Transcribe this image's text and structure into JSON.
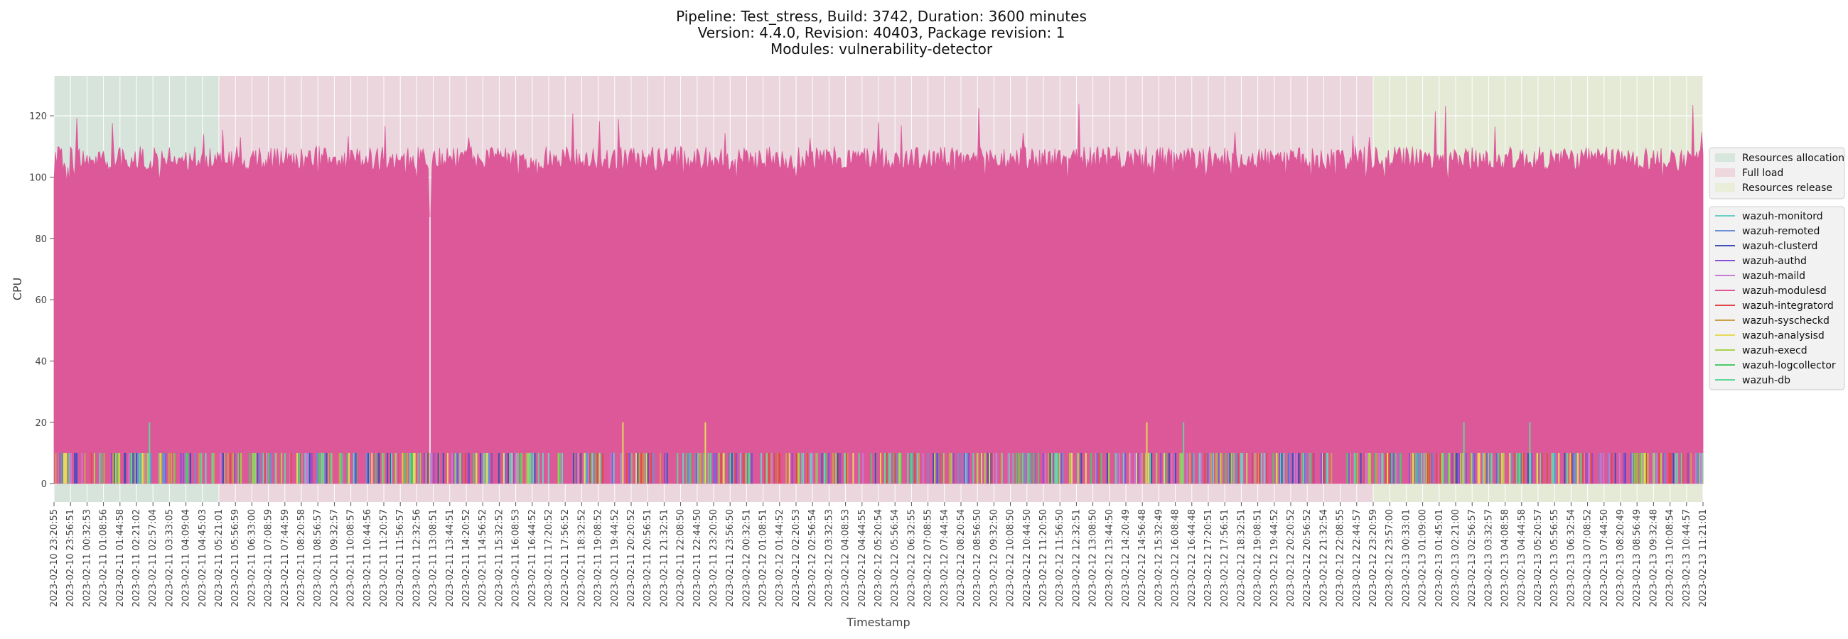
{
  "title_lines": [
    "Pipeline: Test_stress, Build: 3742, Duration: 3600 minutes",
    "Version: 4.4.0, Revision: 40403, Package revision: 1",
    "Modules: vulnerability-detector"
  ],
  "chart_data": {
    "type": "area",
    "xlabel": "Timestamp",
    "ylabel": "CPU",
    "ylim": [
      -6,
      133
    ],
    "yticks": [
      0,
      20,
      40,
      60,
      80,
      100,
      120
    ],
    "grid": true,
    "x_tick_labels": [
      "2023-02-10 23:20:55",
      "2023-02-10 23:56:51",
      "2023-02-11 00:32:53",
      "2023-02-11 01:08:56",
      "2023-02-11 01:44:58",
      "2023-02-11 02:21:02",
      "2023-02-11 02:57:04",
      "2023-02-11 03:33:05",
      "2023-02-11 04:09:04",
      "2023-02-11 04:45:03",
      "2023-02-11 05:21:01",
      "2023-02-11 05:56:59",
      "2023-02-11 06:33:00",
      "2023-02-11 07:08:59",
      "2023-02-11 07:44:59",
      "2023-02-11 08:20:58",
      "2023-02-11 08:56:57",
      "2023-02-11 09:32:57",
      "2023-02-11 10:08:57",
      "2023-02-11 10:44:56",
      "2023-02-11 11:20:57",
      "2023-02-11 11:56:57",
      "2023-02-11 12:32:56",
      "2023-02-11 13:08:51",
      "2023-02-11 13:44:51",
      "2023-02-11 14:20:52",
      "2023-02-11 14:56:52",
      "2023-02-11 15:32:52",
      "2023-02-11 16:08:53",
      "2023-02-11 16:44:52",
      "2023-02-11 17:20:52",
      "2023-02-11 17:56:52",
      "2023-02-11 18:32:52",
      "2023-02-11 19:08:52",
      "2023-02-11 19:44:52",
      "2023-02-11 20:20:52",
      "2023-02-11 20:56:51",
      "2023-02-11 21:32:51",
      "2023-02-11 22:08:50",
      "2023-02-11 22:44:50",
      "2023-02-11 23:20:50",
      "2023-02-11 23:56:50",
      "2023-02-12 00:32:51",
      "2023-02-12 01:08:51",
      "2023-02-12 01:44:52",
      "2023-02-12 02:20:53",
      "2023-02-12 02:56:54",
      "2023-02-12 03:32:53",
      "2023-02-12 04:08:53",
      "2023-02-12 04:44:55",
      "2023-02-12 05:20:54",
      "2023-02-12 05:56:54",
      "2023-02-12 06:32:55",
      "2023-02-12 07:08:55",
      "2023-02-12 07:44:54",
      "2023-02-12 08:20:54",
      "2023-02-12 08:56:50",
      "2023-02-12 09:32:50",
      "2023-02-12 10:08:50",
      "2023-02-12 10:44:50",
      "2023-02-12 11:20:50",
      "2023-02-12 11:56:50",
      "2023-02-12 12:32:51",
      "2023-02-12 13:08:50",
      "2023-02-12 13:44:50",
      "2023-02-12 14:20:49",
      "2023-02-12 14:56:48",
      "2023-02-12 15:32:49",
      "2023-02-12 16:08:48",
      "2023-02-12 16:44:48",
      "2023-02-12 17:20:51",
      "2023-02-12 17:56:51",
      "2023-02-12 18:32:51",
      "2023-02-12 19:08:51",
      "2023-02-12 19:44:52",
      "2023-02-12 20:20:52",
      "2023-02-12 20:56:52",
      "2023-02-12 21:32:54",
      "2023-02-12 22:08:55",
      "2023-02-12 22:44:57",
      "2023-02-12 23:20:59",
      "2023-02-12 23:57:00",
      "2023-02-13 00:33:01",
      "2023-02-13 01:09:00",
      "2023-02-13 01:45:01",
      "2023-02-13 02:21:00",
      "2023-02-13 02:56:57",
      "2023-02-13 03:32:57",
      "2023-02-13 04:08:58",
      "2023-02-13 04:44:58",
      "2023-02-13 05:20:57",
      "2023-02-13 05:56:55",
      "2023-02-13 06:32:54",
      "2023-02-13 07:08:52",
      "2023-02-13 07:44:50",
      "2023-02-13 08:20:49",
      "2023-02-13 08:56:49",
      "2023-02-13 09:32:48",
      "2023-02-13 10:08:54",
      "2023-02-13 10:44:57",
      "2023-02-13 11:21:01"
    ],
    "phases": [
      {
        "name": "Resources allocation",
        "color": "#a9d3b7",
        "from_tick": 0,
        "to_tick": 10
      },
      {
        "name": "Full load",
        "color": "#e8a6b8",
        "from_tick": 10,
        "to_tick": 80
      },
      {
        "name": "Resources release",
        "color": "#d6e9a9",
        "from_tick": 80,
        "to_tick": 100
      }
    ],
    "series": [
      {
        "name": "wazuh-monitord",
        "color": "#6ccfc6",
        "baseline": 0,
        "peak_band": [
          0,
          10
        ]
      },
      {
        "name": "wazuh-remoted",
        "color": "#6a8fd6",
        "baseline": 0,
        "peak_band": [
          0,
          10
        ]
      },
      {
        "name": "wazuh-clusterd",
        "color": "#3f4fb8",
        "baseline": 0,
        "peak_band": [
          0,
          10
        ]
      },
      {
        "name": "wazuh-authd",
        "color": "#8a4fd6",
        "baseline": 0,
        "peak_band": [
          0,
          10
        ]
      },
      {
        "name": "wazuh-maild",
        "color": "#c77ad6",
        "baseline": 0,
        "peak_band": [
          0,
          10
        ]
      },
      {
        "name": "wazuh-modulesd",
        "color": "#dc5899",
        "baseline": 100,
        "peak_band": [
          100,
          127
        ],
        "dip": {
          "at_tick": 22.8,
          "value": 87
        }
      },
      {
        "name": "wazuh-integratord",
        "color": "#e04848",
        "baseline": 0,
        "peak_band": [
          0,
          10
        ]
      },
      {
        "name": "wazuh-syscheckd",
        "color": "#c9a24a",
        "baseline": 0,
        "peak_band": [
          0,
          10
        ]
      },
      {
        "name": "wazuh-analysisd",
        "color": "#e6d95a",
        "baseline": 0,
        "peak_band": [
          0,
          20
        ]
      },
      {
        "name": "wazuh-execd",
        "color": "#a8d24a",
        "baseline": 0,
        "peak_band": [
          0,
          10
        ]
      },
      {
        "name": "wazuh-logcollector",
        "color": "#4fc96a",
        "baseline": 0,
        "peak_band": [
          0,
          10
        ]
      },
      {
        "name": "wazuh-db",
        "color": "#5fd69a",
        "baseline": 0,
        "peak_band": [
          0,
          20
        ]
      }
    ]
  }
}
